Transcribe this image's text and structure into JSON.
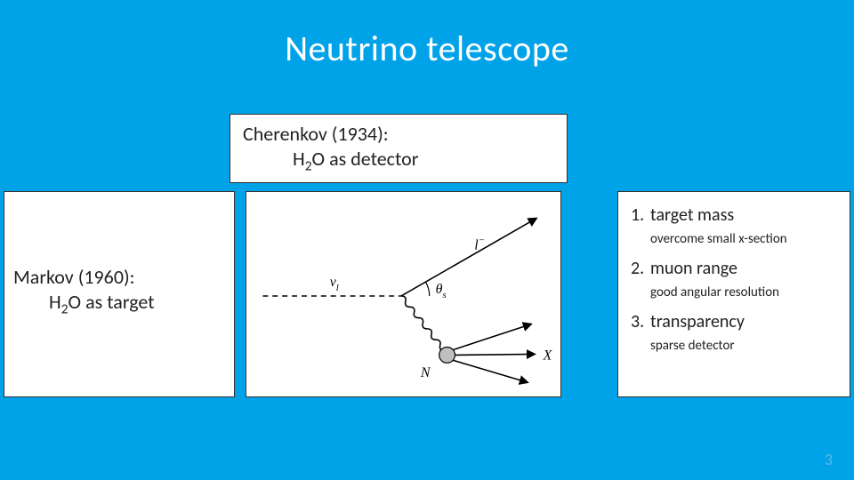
{
  "colors": {
    "background": "#00a2e8",
    "foreground": "#ffffff",
    "panel_bg": "#ffffff",
    "panel_border": "#333333",
    "text": "#222222",
    "pagenum_color": "#5fb6e6",
    "diagram_stroke": "#000000",
    "nucleon_fill": "#bfbfbf"
  },
  "title": "Neutrino telescope",
  "cherenkov": {
    "line1": "Cherenkov (1934):",
    "line2_html": "H<sub>2</sub>O as detector"
  },
  "markov": {
    "line1": "Markov (1960):",
    "line2_html": "H<sub>2</sub>O as target"
  },
  "diagram": {
    "neutrino_label": "ν",
    "neutrino_sub": "l",
    "lepton_label": "l",
    "lepton_sup": "−",
    "angle_label": "θ",
    "angle_sub": "s",
    "nucleon_label": "N",
    "hadron_label": "X",
    "stroke_width": 1.6,
    "arrow_size": 7,
    "dash": "6 5",
    "boson_amp": 5,
    "nucleon_radius": 9
  },
  "requirements": {
    "items": [
      {
        "num": "1.",
        "title": "target mass",
        "sub": "overcome small x-section"
      },
      {
        "num": "2.",
        "title": "muon range",
        "sub": "good angular resolution"
      },
      {
        "num": "3.",
        "title": "transparency",
        "sub": "sparse detector"
      }
    ]
  },
  "page_number": "3"
}
